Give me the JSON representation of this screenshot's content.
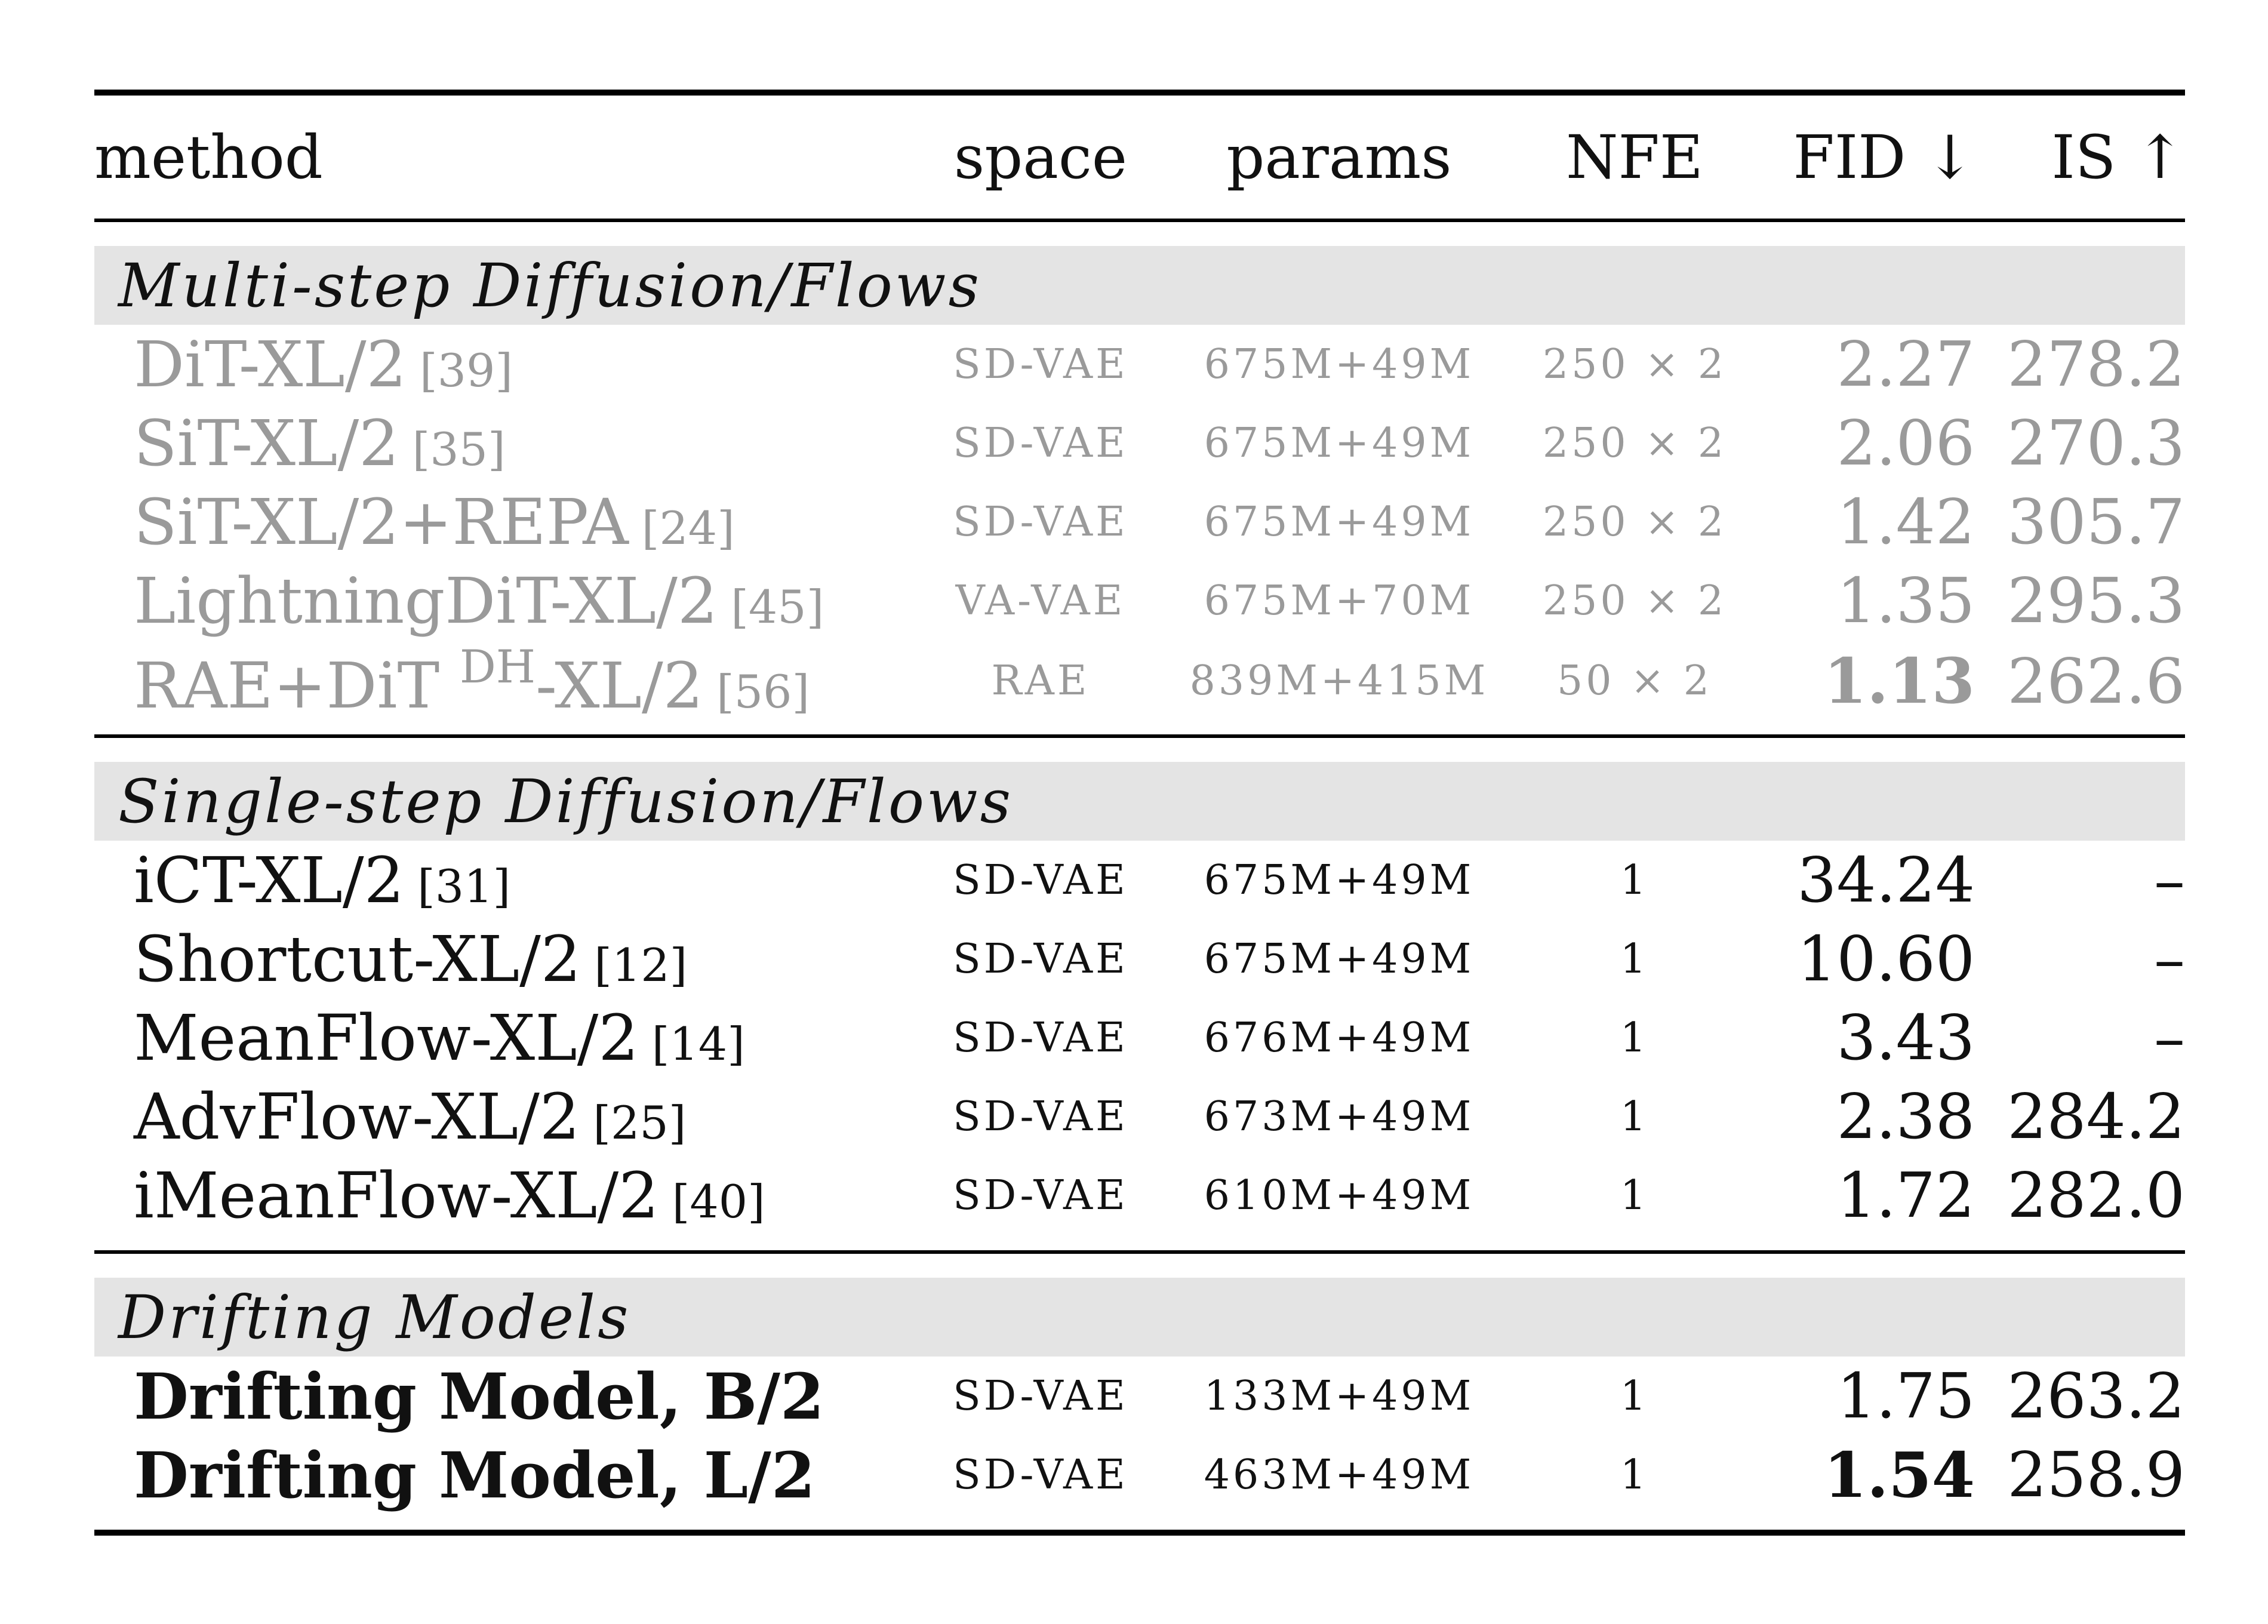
{
  "table": {
    "header": {
      "method": "method",
      "space": "space",
      "params": "params",
      "nfe": "NFE",
      "fid": "FID ↓",
      "is": "IS ↑"
    },
    "sections": [
      {
        "title": "Multi-step Diffusion/Flows",
        "rows": [
          {
            "method": "DiT-XL/2",
            "method_sup": "",
            "method_suffix": "",
            "ref": "[39]",
            "space": "SD-VAE",
            "params": "675M+49M",
            "nfe": "250 × 2",
            "fid": "2.27",
            "is": "278.2"
          },
          {
            "method": "SiT-XL/2",
            "method_sup": "",
            "method_suffix": "",
            "ref": "[35]",
            "space": "SD-VAE",
            "params": "675M+49M",
            "nfe": "250 × 2",
            "fid": "2.06",
            "is": "270.3"
          },
          {
            "method": "SiT-XL/2+REPA",
            "method_sup": "",
            "method_suffix": "",
            "ref": "[24]",
            "space": "SD-VAE",
            "params": "675M+49M",
            "nfe": "250 × 2",
            "fid": "1.42",
            "is": "305.7"
          },
          {
            "method": "LightningDiT-XL/2",
            "method_sup": "",
            "method_suffix": "",
            "ref": "[45]",
            "space": "VA-VAE",
            "params": "675M+70M",
            "nfe": "250 × 2",
            "fid": "1.35",
            "is": "295.3"
          },
          {
            "method": "RAE+DiT ",
            "method_sup": "DH",
            "method_suffix": "-XL/2",
            "ref": "[56]",
            "space": "RAE",
            "params": "839M+415M",
            "nfe": "50 × 2",
            "fid": "1.13",
            "is": "262.6"
          }
        ]
      },
      {
        "title": "Single-step Diffusion/Flows",
        "rows": [
          {
            "method": "iCT-XL/2",
            "ref": "[31]",
            "space": "SD-VAE",
            "params": "675M+49M",
            "nfe": "1",
            "fid": "34.24",
            "is": "–"
          },
          {
            "method": "Shortcut-XL/2",
            "ref": "[12]",
            "space": "SD-VAE",
            "params": "675M+49M",
            "nfe": "1",
            "fid": "10.60",
            "is": "–"
          },
          {
            "method": "MeanFlow-XL/2",
            "ref": "[14]",
            "space": "SD-VAE",
            "params": "676M+49M",
            "nfe": "1",
            "fid": "3.43",
            "is": "–"
          },
          {
            "method": "AdvFlow-XL/2",
            "ref": "[25]",
            "space": "SD-VAE",
            "params": "673M+49M",
            "nfe": "1",
            "fid": "2.38",
            "is": "284.2"
          },
          {
            "method": "iMeanFlow-XL/2",
            "ref": "[40]",
            "space": "SD-VAE",
            "params": "610M+49M",
            "nfe": "1",
            "fid": "1.72",
            "is": "282.0"
          }
        ]
      },
      {
        "title": "Drifting Models",
        "rows": [
          {
            "method": "Drifting Model, B/2",
            "space": "SD-VAE",
            "params": "133M+49M",
            "nfe": "1",
            "fid": "1.75",
            "is": "263.2"
          },
          {
            "method": "Drifting Model, L/2",
            "space": "SD-VAE",
            "params": "463M+49M",
            "nfe": "1",
            "fid": "1.54",
            "is": "258.9"
          }
        ]
      }
    ]
  }
}
